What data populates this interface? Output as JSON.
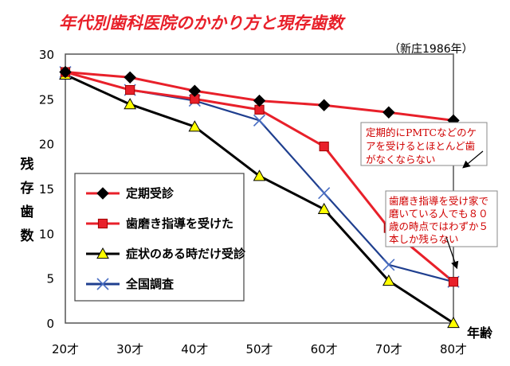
{
  "chart_data": {
    "type": "line",
    "title": "年代別歯科医院のかかり方と現存歯数",
    "source_note": "（新庄1986年）",
    "ylabel": "残存歯数",
    "xlabel": "年齢",
    "categories": [
      "20才",
      "30才",
      "40才",
      "50才",
      "60才",
      "70才",
      "80才"
    ],
    "ylim": [
      0,
      30
    ],
    "yticks": [
      0,
      5,
      10,
      15,
      20,
      25,
      30
    ],
    "grid": false,
    "legend_position": "left-middle",
    "series": [
      {
        "name": "定期受診",
        "color": "#000000",
        "line_color": "#e8202a",
        "marker": "diamond",
        "values": [
          28,
          27.4,
          25.9,
          24.8,
          24.3,
          23.5,
          22.6
        ]
      },
      {
        "name": "歯磨き指導を受けた",
        "color": "#e8202a",
        "line_color": "#e8202a",
        "marker": "square",
        "values": [
          28,
          26,
          25,
          23.8,
          19.7,
          10.6,
          4.6
        ]
      },
      {
        "name": "症状のある時だけ受診",
        "color": "#ffff00",
        "line_color": "#000000",
        "marker": "triangle",
        "values": [
          27.7,
          24.4,
          21.9,
          16.4,
          12.7,
          4.7,
          0
        ]
      },
      {
        "name": "全国調査",
        "color": "#4a6fc4",
        "line_color": "#1f3f8f",
        "marker": "x",
        "values": [
          28,
          26,
          24.8,
          22.6,
          14.5,
          6.5,
          4.6
        ]
      }
    ],
    "annotations": [
      {
        "lines": [
          "定期的にPMTCなどのケ",
          "アを受けるとほとんど歯",
          "がなくならない"
        ],
        "color": "#d00000"
      },
      {
        "lines": [
          "歯磨き指導を受け家で",
          "磨いている人でも８０",
          "歳の時点ではわずか５",
          "本しか残らない"
        ],
        "color": "#d00000"
      }
    ]
  }
}
